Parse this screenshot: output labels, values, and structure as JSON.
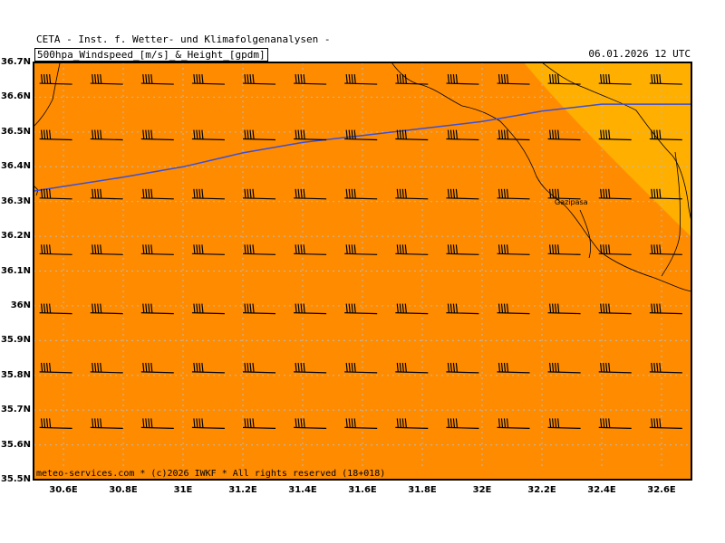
{
  "header": {
    "line1": "CETA - Inst. f. Wetter- und Klimafolgenanalysen -",
    "title": "500hpa_Windspeed_[m/s]_&_Height_[gpdm]",
    "datetime": "06.01.2026 12 UTC"
  },
  "footer": "meteo-services.com * (c)2026 IWKF * All rights reserved (18+018)",
  "city": "Gazipasa",
  "colors": {
    "field_main": "#ff8c00",
    "field_low": "#ffaf00",
    "contour": "#3a4fd8",
    "coast": "#000000",
    "grid": "#b9b9b9"
  },
  "chart_data": {
    "type": "map",
    "y_ticks": [
      "36.7N",
      "36.6N",
      "36.5N",
      "36.4N",
      "36.3N",
      "36.2N",
      "36.1N",
      "36N",
      "35.9N",
      "35.8N",
      "35.7N",
      "35.6N",
      "35.5N"
    ],
    "x_ticks": [
      "30.6E",
      "30.8E",
      "31E",
      "31.2E",
      "31.4E",
      "31.6E",
      "31.8E",
      "32E",
      "32.2E",
      "32.4E",
      "32.6E"
    ],
    "lat_range": [
      35.5,
      36.7
    ],
    "lon_range": [
      30.5,
      32.7
    ],
    "grid": true,
    "height_contour": [
      [
        30.5,
        36.33
      ],
      [
        30.8,
        36.37
      ],
      [
        31.0,
        36.4
      ],
      [
        31.2,
        36.44
      ],
      [
        31.4,
        36.47
      ],
      [
        31.6,
        36.49
      ],
      [
        31.8,
        36.51
      ],
      [
        32.0,
        36.53
      ],
      [
        32.2,
        36.56
      ],
      [
        32.4,
        36.58
      ],
      [
        32.6,
        36.58
      ],
      [
        32.7,
        36.58
      ]
    ],
    "wind_barbs": {
      "lons": [
        30.52,
        30.69,
        30.86,
        31.03,
        31.2,
        31.37,
        31.54,
        31.71,
        31.88,
        32.05,
        32.22,
        32.39,
        32.56,
        32.73
      ],
      "lats": [
        36.64,
        36.48,
        36.31,
        36.15,
        35.98,
        35.81,
        35.65
      ]
    }
  }
}
